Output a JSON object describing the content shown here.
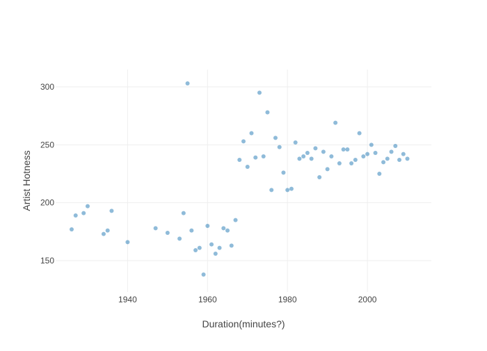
{
  "chart_data": {
    "type": "scatter",
    "title": "",
    "xlabel": "Duration(minutes?)",
    "ylabel": "Artist Hotness",
    "xlim": [
      1922,
      2016
    ],
    "ylim": [
      123,
      315
    ],
    "x_ticks": [
      1940,
      1960,
      1980,
      2000
    ],
    "y_ticks": [
      150,
      200,
      250,
      300
    ],
    "grid": true,
    "legend": "none",
    "point_color": "#1f77b4",
    "series": [
      {
        "points": [
          [
            1926,
            177
          ],
          [
            1927,
            189
          ],
          [
            1929,
            191
          ],
          [
            1930,
            197
          ],
          [
            1934,
            173
          ],
          [
            1935,
            176
          ],
          [
            1936,
            193
          ],
          [
            1940,
            166
          ],
          [
            1947,
            178
          ],
          [
            1950,
            174
          ],
          [
            1953,
            169
          ],
          [
            1954,
            191
          ],
          [
            1955,
            303
          ],
          [
            1956,
            176
          ],
          [
            1957,
            159
          ],
          [
            1958,
            161
          ],
          [
            1959,
            138
          ],
          [
            1960,
            180
          ],
          [
            1961,
            164
          ],
          [
            1962,
            156
          ],
          [
            1963,
            161
          ],
          [
            1964,
            178
          ],
          [
            1965,
            176
          ],
          [
            1966,
            163
          ],
          [
            1967,
            185
          ],
          [
            1968,
            237
          ],
          [
            1969,
            253
          ],
          [
            1970,
            231
          ],
          [
            1971,
            260
          ],
          [
            1972,
            239
          ],
          [
            1973,
            295
          ],
          [
            1974,
            240
          ],
          [
            1975,
            278
          ],
          [
            1976,
            211
          ],
          [
            1977,
            256
          ],
          [
            1978,
            248
          ],
          [
            1979,
            226
          ],
          [
            1980,
            211
          ],
          [
            1981,
            212
          ],
          [
            1982,
            252
          ],
          [
            1983,
            238
          ],
          [
            1984,
            240
          ],
          [
            1985,
            243
          ],
          [
            1986,
            238
          ],
          [
            1987,
            247
          ],
          [
            1988,
            222
          ],
          [
            1989,
            244
          ],
          [
            1990,
            229
          ],
          [
            1991,
            240
          ],
          [
            1992,
            269
          ],
          [
            1993,
            234
          ],
          [
            1994,
            246
          ],
          [
            1995,
            246
          ],
          [
            1996,
            234
          ],
          [
            1997,
            237
          ],
          [
            1998,
            260
          ],
          [
            1999,
            240
          ],
          [
            2000,
            242
          ],
          [
            2001,
            250
          ],
          [
            2002,
            243
          ],
          [
            2003,
            225
          ],
          [
            2004,
            235
          ],
          [
            2005,
            238
          ],
          [
            2006,
            244
          ],
          [
            2007,
            249
          ],
          [
            2008,
            237
          ],
          [
            2009,
            242
          ],
          [
            2010,
            238
          ]
        ]
      }
    ]
  }
}
